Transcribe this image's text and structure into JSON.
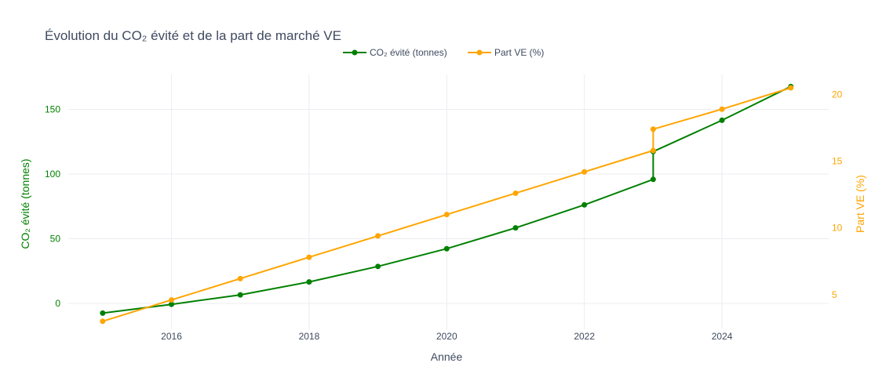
{
  "chart_data": {
    "type": "line",
    "title": "Évolution du CO₂ évité et de la part de marché VE",
    "xlabel": "Année",
    "ylabel_left": "CO₂ évité (tonnes)",
    "ylabel_right": "Part VE (%)",
    "x_ticks": [
      "2016",
      "2018",
      "2020",
      "2022",
      "2024"
    ],
    "y_left_ticks": [
      "0",
      "50",
      "100",
      "150"
    ],
    "y_right_ticks": [
      "5",
      "10",
      "15",
      "20"
    ],
    "xlim": [
      2014.5,
      2025.55
    ],
    "ylim_left": [
      -20,
      177
    ],
    "ylim_right": [
      2.4,
      21.5
    ],
    "grid": true,
    "legend_position": "top-center",
    "series": [
      {
        "name": "CO₂ évité (tonnes)",
        "axis": "left",
        "color": "#008000",
        "points": [
          {
            "x": 2015,
            "y": -7.5
          },
          {
            "x": 2016,
            "y": -0.7
          },
          {
            "x": 2017,
            "y": 6.6
          },
          {
            "x": 2018,
            "y": 16.6
          },
          {
            "x": 2019,
            "y": 28.6
          },
          {
            "x": 2020,
            "y": 42.3
          },
          {
            "x": 2021,
            "y": 58.4
          },
          {
            "x": 2022,
            "y": 76.2
          },
          {
            "x": 2023,
            "y": 95.9
          },
          {
            "x": 2023,
            "y": 117.4
          },
          {
            "x": 2024,
            "y": 141.6
          },
          {
            "x": 2025,
            "y": 167.7
          }
        ]
      },
      {
        "name": "Part VE (%)",
        "axis": "right",
        "color": "#FFA500",
        "points": [
          {
            "x": 2015,
            "y": 3.0
          },
          {
            "x": 2016,
            "y": 4.6
          },
          {
            "x": 2017,
            "y": 6.2
          },
          {
            "x": 2018,
            "y": 7.8
          },
          {
            "x": 2019,
            "y": 9.4
          },
          {
            "x": 2020,
            "y": 11.0
          },
          {
            "x": 2021,
            "y": 12.6
          },
          {
            "x": 2022,
            "y": 14.2
          },
          {
            "x": 2023,
            "y": 15.8
          },
          {
            "x": 2023,
            "y": 17.4
          },
          {
            "x": 2024,
            "y": 18.9
          },
          {
            "x": 2025,
            "y": 20.5
          }
        ]
      }
    ]
  }
}
